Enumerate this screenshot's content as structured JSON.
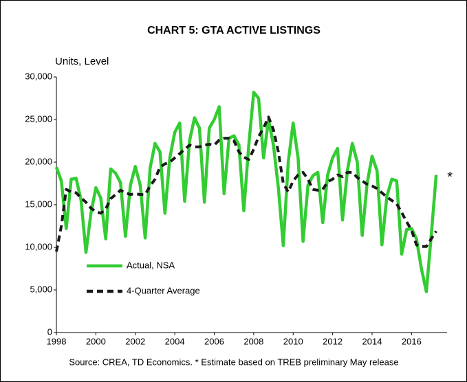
{
  "chart_data": {
    "type": "line",
    "title": "CHART 5: GTA ACTIVE LISTINGS",
    "y_label": "Units, Level",
    "source": "Source: CREA, TD Economics. * Estimate based on TREB preliminary May release",
    "annotation": "*",
    "x": [
      1998,
      1998.25,
      1998.5,
      1998.75,
      1999,
      1999.25,
      1999.5,
      1999.75,
      2000,
      2000.25,
      2000.5,
      2000.75,
      2001,
      2001.25,
      2001.5,
      2001.75,
      2002,
      2002.25,
      2002.5,
      2002.75,
      2003,
      2003.25,
      2003.5,
      2003.75,
      2004,
      2004.25,
      2004.5,
      2004.75,
      2005,
      2005.25,
      2005.5,
      2005.75,
      2006,
      2006.25,
      2006.5,
      2006.75,
      2007,
      2007.25,
      2007.5,
      2007.75,
      2008,
      2008.25,
      2008.5,
      2008.75,
      2009,
      2009.25,
      2009.5,
      2009.75,
      2010,
      2010.25,
      2010.5,
      2010.75,
      2011,
      2011.25,
      2011.5,
      2011.75,
      2012,
      2012.25,
      2012.5,
      2012.75,
      2013,
      2013.25,
      2013.5,
      2013.75,
      2014,
      2014.25,
      2014.5,
      2014.75,
      2015,
      2015.25,
      2015.5,
      2015.75,
      2016,
      2016.25,
      2016.5,
      2016.75,
      2017,
      2017.25
    ],
    "series": [
      {
        "name": "Actual, NSA",
        "color": "#33cc33",
        "dash": false,
        "values": [
          19400,
          17800,
          12200,
          18000,
          18100,
          15500,
          9400,
          14000,
          17000,
          15800,
          11000,
          19200,
          18700,
          17600,
          11300,
          17300,
          19500,
          17300,
          11100,
          19300,
          22200,
          21200,
          14000,
          20500,
          23500,
          24600,
          15400,
          22500,
          25200,
          24000,
          15300,
          24000,
          25000,
          26500,
          16300,
          22800,
          23100,
          22000,
          14300,
          22000,
          28200,
          27500,
          20500,
          25000,
          22000,
          17000,
          10200,
          20000,
          24600,
          20500,
          10700,
          17300,
          18400,
          18800,
          12900,
          18500,
          20500,
          21600,
          13200,
          19000,
          22200,
          20000,
          11400,
          17500,
          20700,
          19000,
          10300,
          16000,
          18000,
          17800,
          9200,
          12100,
          12200,
          11000,
          7500,
          4800,
          11500,
          18500
        ]
      },
      {
        "name": "4-Quarter Average",
        "color": "#1a1a1a",
        "dash": true,
        "values": [
          9500,
          12500,
          16800,
          16500,
          16400,
          15800,
          15300,
          14600,
          14200,
          14000,
          14500,
          15700,
          16200,
          16700,
          16400,
          16200,
          16300,
          16200,
          16200,
          17200,
          18000,
          19400,
          19800,
          20000,
          20500,
          21000,
          21500,
          22000,
          21800,
          21800,
          22000,
          22100,
          22000,
          22600,
          22800,
          22800,
          22500,
          21200,
          20600,
          20300,
          21500,
          23000,
          24000,
          25300,
          23800,
          21200,
          17500,
          16500,
          17800,
          18500,
          18800,
          18000,
          16800,
          16700,
          16800,
          17700,
          18000,
          18500,
          18300,
          18800,
          18800,
          18200,
          17800,
          17400,
          17200,
          16900,
          16400,
          15900,
          15500,
          15100,
          14100,
          13000,
          12000,
          10300,
          10100,
          10100,
          11000,
          11900
        ]
      }
    ],
    "xlim": [
      1998,
      2017.8
    ],
    "xticks": [
      1998,
      2000,
      2002,
      2004,
      2006,
      2008,
      2010,
      2012,
      2014,
      2016
    ],
    "ylim": [
      0,
      30000
    ],
    "yticks": [
      0,
      {
        "value": 5000,
        "label": "5,000"
      },
      {
        "value": 10000,
        "label": "10,000"
      },
      {
        "value": 15000,
        "label": "15,000"
      },
      {
        "value": 20000,
        "label": "20,000"
      },
      {
        "value": 25000,
        "label": "25,000"
      },
      {
        "value": 30000,
        "label": "30,000"
      }
    ],
    "grid": false
  }
}
